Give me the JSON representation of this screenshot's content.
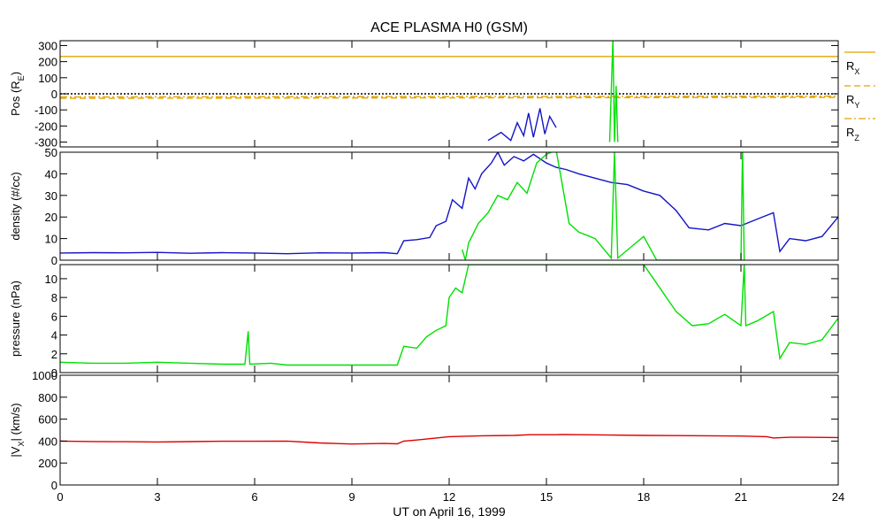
{
  "chart_data": [
    {
      "type": "line",
      "title": "ACE PLASMA H0 (GSM)",
      "ylabel_main": "Pos (R",
      "ylabel_sub": "E",
      "ylabel_end": ")",
      "ylim": [
        -330,
        330
      ],
      "yticks": [
        300,
        200,
        100,
        0,
        -100,
        -200,
        -300
      ],
      "ytick_labels": [
        "300",
        "200",
        "100",
        "0",
        "-100",
        "-200",
        "-300"
      ],
      "legend": [
        {
          "main": "R",
          "sub": "X",
          "color": "#e3a300",
          "dash": "solid"
        },
        {
          "main": "R",
          "sub": "Y",
          "color": "#e3a300",
          "dash": "dashed"
        },
        {
          "main": "R",
          "sub": "Z",
          "color": "#e3a300",
          "dash": "dashdot"
        }
      ],
      "series": [
        {
          "values": [
            [
              0,
              232
            ],
            [
              24,
              232
            ]
          ],
          "color": "#e3a300",
          "dash": "solid"
        },
        {
          "values": [
            [
              0,
              -28
            ],
            [
              24,
              -22
            ]
          ],
          "color": "#e3a300",
          "dash": "dashed"
        },
        {
          "values": [
            [
              0,
              -20
            ],
            [
              24,
              -15
            ]
          ],
          "color": "#e3a300",
          "dash": "dashdot"
        },
        {
          "values": [
            [
              0,
              0
            ],
            [
              24,
              0
            ]
          ],
          "color": "#000000",
          "dash": "dotted"
        },
        {
          "values": [
            [
              13.2,
              -290
            ],
            [
              13.6,
              -240
            ],
            [
              13.9,
              -290
            ],
            [
              14.1,
              -180
            ],
            [
              14.3,
              -260
            ],
            [
              14.45,
              -120
            ],
            [
              14.6,
              -270
            ],
            [
              14.8,
              -90
            ],
            [
              14.95,
              -250
            ],
            [
              15.1,
              -140
            ],
            [
              15.3,
              -210
            ]
          ],
          "color": "#1414c8",
          "dash": "solid"
        },
        {
          "values": [
            [
              16.95,
              -300
            ],
            [
              17.05,
              340
            ],
            [
              17.1,
              -300
            ],
            [
              17.15,
              50
            ],
            [
              17.2,
              -300
            ]
          ],
          "color": "#00e000",
          "dash": "solid"
        }
      ]
    },
    {
      "type": "line",
      "ylabel": "density (#/cc)",
      "ylim": [
        0,
        50
      ],
      "yticks": [
        0,
        10,
        20,
        30,
        40,
        50
      ],
      "ytick_labels": [
        "0",
        "10",
        "20",
        "30",
        "40",
        "50"
      ],
      "series": [
        {
          "color": "#1414c8",
          "values": [
            [
              0,
              3.3
            ],
            [
              1,
              3.5
            ],
            [
              2,
              3.4
            ],
            [
              3,
              3.6
            ],
            [
              4,
              3.2
            ],
            [
              5,
              3.5
            ],
            [
              6,
              3.3
            ],
            [
              7,
              3.0
            ],
            [
              8,
              3.4
            ],
            [
              9,
              3.3
            ],
            [
              10,
              3.5
            ],
            [
              10.4,
              3.0
            ],
            [
              10.6,
              9.0
            ],
            [
              11,
              9.5
            ],
            [
              11.4,
              10.5
            ],
            [
              11.6,
              16
            ],
            [
              11.9,
              18
            ],
            [
              12.1,
              28
            ],
            [
              12.4,
              24
            ],
            [
              12.6,
              38
            ],
            [
              12.8,
              33
            ],
            [
              13.0,
              40
            ],
            [
              13.3,
              45
            ],
            [
              13.5,
              50
            ],
            [
              13.7,
              44
            ],
            [
              14.0,
              48
            ],
            [
              14.3,
              46
            ],
            [
              14.6,
              49
            ],
            [
              15.0,
              45
            ],
            [
              15.3,
              43
            ],
            [
              15.6,
              42
            ],
            [
              16.0,
              40
            ],
            [
              16.5,
              38
            ],
            [
              17.0,
              36
            ],
            [
              17.5,
              35
            ],
            [
              18.0,
              32
            ],
            [
              18.5,
              30
            ],
            [
              19.0,
              23
            ],
            [
              19.4,
              15
            ],
            [
              20.0,
              14
            ],
            [
              20.5,
              17
            ],
            [
              21.0,
              16
            ],
            [
              21.5,
              19
            ],
            [
              22.0,
              22
            ],
            [
              22.2,
              4
            ],
            [
              22.5,
              10
            ],
            [
              23.0,
              9
            ],
            [
              23.5,
              11
            ],
            [
              24.0,
              20
            ]
          ]
        },
        {
          "color": "#00e000",
          "values": [
            [
              12.4,
              5
            ],
            [
              12.5,
              0
            ],
            [
              12.6,
              8
            ],
            [
              12.9,
              17
            ],
            [
              13.2,
              22
            ],
            [
              13.5,
              30
            ],
            [
              13.8,
              28
            ],
            [
              14.1,
              36
            ],
            [
              14.4,
              31
            ],
            [
              14.7,
              45
            ],
            [
              15.0,
              49
            ],
            [
              15.3,
              51
            ],
            [
              15.7,
              17
            ],
            [
              16.0,
              13
            ],
            [
              16.5,
              10
            ],
            [
              17.0,
              1
            ],
            [
              17.1,
              50
            ],
            [
              17.2,
              1
            ],
            [
              17.6,
              6
            ],
            [
              18.0,
              11
            ],
            [
              18.4,
              0
            ],
            [
              21.0,
              0
            ],
            [
              21.05,
              52
            ],
            [
              21.1,
              0
            ]
          ]
        }
      ]
    },
    {
      "type": "line",
      "ylabel": "pressure (nPa)",
      "ylim": [
        0,
        11.5
      ],
      "yticks": [
        0,
        2,
        4,
        6,
        8,
        10
      ],
      "ytick_labels": [
        "0",
        "2",
        "4",
        "6",
        "8",
        "10"
      ],
      "series": [
        {
          "color": "#00e000",
          "values": [
            [
              0,
              1.1
            ],
            [
              1,
              1.0
            ],
            [
              2,
              1.0
            ],
            [
              3,
              1.1
            ],
            [
              4,
              1.0
            ],
            [
              5,
              0.9
            ],
            [
              5.7,
              0.9
            ],
            [
              5.8,
              4.4
            ],
            [
              5.85,
              0.9
            ],
            [
              6.5,
              1.0
            ],
            [
              7,
              0.8
            ],
            [
              8,
              0.8
            ],
            [
              9,
              0.8
            ],
            [
              10,
              0.8
            ],
            [
              10.4,
              0.8
            ],
            [
              10.6,
              2.8
            ],
            [
              11,
              2.6
            ],
            [
              11.3,
              3.8
            ],
            [
              11.6,
              4.5
            ],
            [
              11.9,
              5.0
            ],
            [
              12.0,
              8.0
            ],
            [
              12.2,
              9.0
            ],
            [
              12.4,
              8.5
            ],
            [
              12.6,
              11.5
            ],
            [
              12.8,
              11.5
            ],
            [
              18.0,
              11.5
            ],
            [
              18.4,
              9.5
            ],
            [
              18.8,
              7.5
            ],
            [
              19.0,
              6.5
            ],
            [
              19.5,
              5.0
            ],
            [
              20.0,
              5.2
            ],
            [
              20.5,
              6.2
            ],
            [
              21.0,
              5.0
            ],
            [
              21.1,
              11.5
            ],
            [
              21.15,
              5.0
            ],
            [
              21.5,
              5.5
            ],
            [
              22.0,
              6.5
            ],
            [
              22.2,
              1.5
            ],
            [
              22.5,
              3.2
            ],
            [
              23.0,
              3.0
            ],
            [
              23.5,
              3.5
            ],
            [
              24.0,
              5.8
            ]
          ]
        }
      ]
    },
    {
      "type": "line",
      "ylabel_main": "|V",
      "ylabel_sub": "X",
      "ylabel_end": "| (km/s)",
      "ylim": [
        0,
        1000
      ],
      "yticks": [
        0,
        200,
        400,
        600,
        800,
        1000
      ],
      "ytick_labels": [
        "0",
        "200",
        "400",
        "600",
        "800",
        "1000"
      ],
      "series": [
        {
          "color": "#e00000",
          "values": [
            [
              0,
              400
            ],
            [
              1,
              396
            ],
            [
              2,
              394
            ],
            [
              3,
              392
            ],
            [
              4,
              395
            ],
            [
              5,
              398
            ],
            [
              6,
              398
            ],
            [
              7,
              400
            ],
            [
              8,
              383
            ],
            [
              9,
              373
            ],
            [
              10,
              378
            ],
            [
              10.4,
              375
            ],
            [
              10.6,
              400
            ],
            [
              11,
              410
            ],
            [
              11.5,
              425
            ],
            [
              12,
              440
            ],
            [
              13,
              448
            ],
            [
              14,
              452
            ],
            [
              14.5,
              458
            ],
            [
              15.3,
              458
            ],
            [
              15.5,
              460
            ],
            [
              16,
              458
            ],
            [
              17,
              455
            ],
            [
              18,
              452
            ],
            [
              19,
              450
            ],
            [
              20,
              448
            ],
            [
              21,
              446
            ],
            [
              21.8,
              440
            ],
            [
              22,
              428
            ],
            [
              22.5,
              435
            ],
            [
              23,
              435
            ],
            [
              24,
              432
            ]
          ]
        }
      ]
    }
  ],
  "x_axis": {
    "xlim": [
      0,
      24
    ],
    "ticks": [
      0,
      3,
      6,
      9,
      12,
      15,
      18,
      21,
      24
    ],
    "tick_labels": [
      "0",
      "3",
      "6",
      "9",
      "12",
      "15",
      "18",
      "21",
      "24"
    ],
    "xlabel": "UT on April 16, 1999"
  }
}
